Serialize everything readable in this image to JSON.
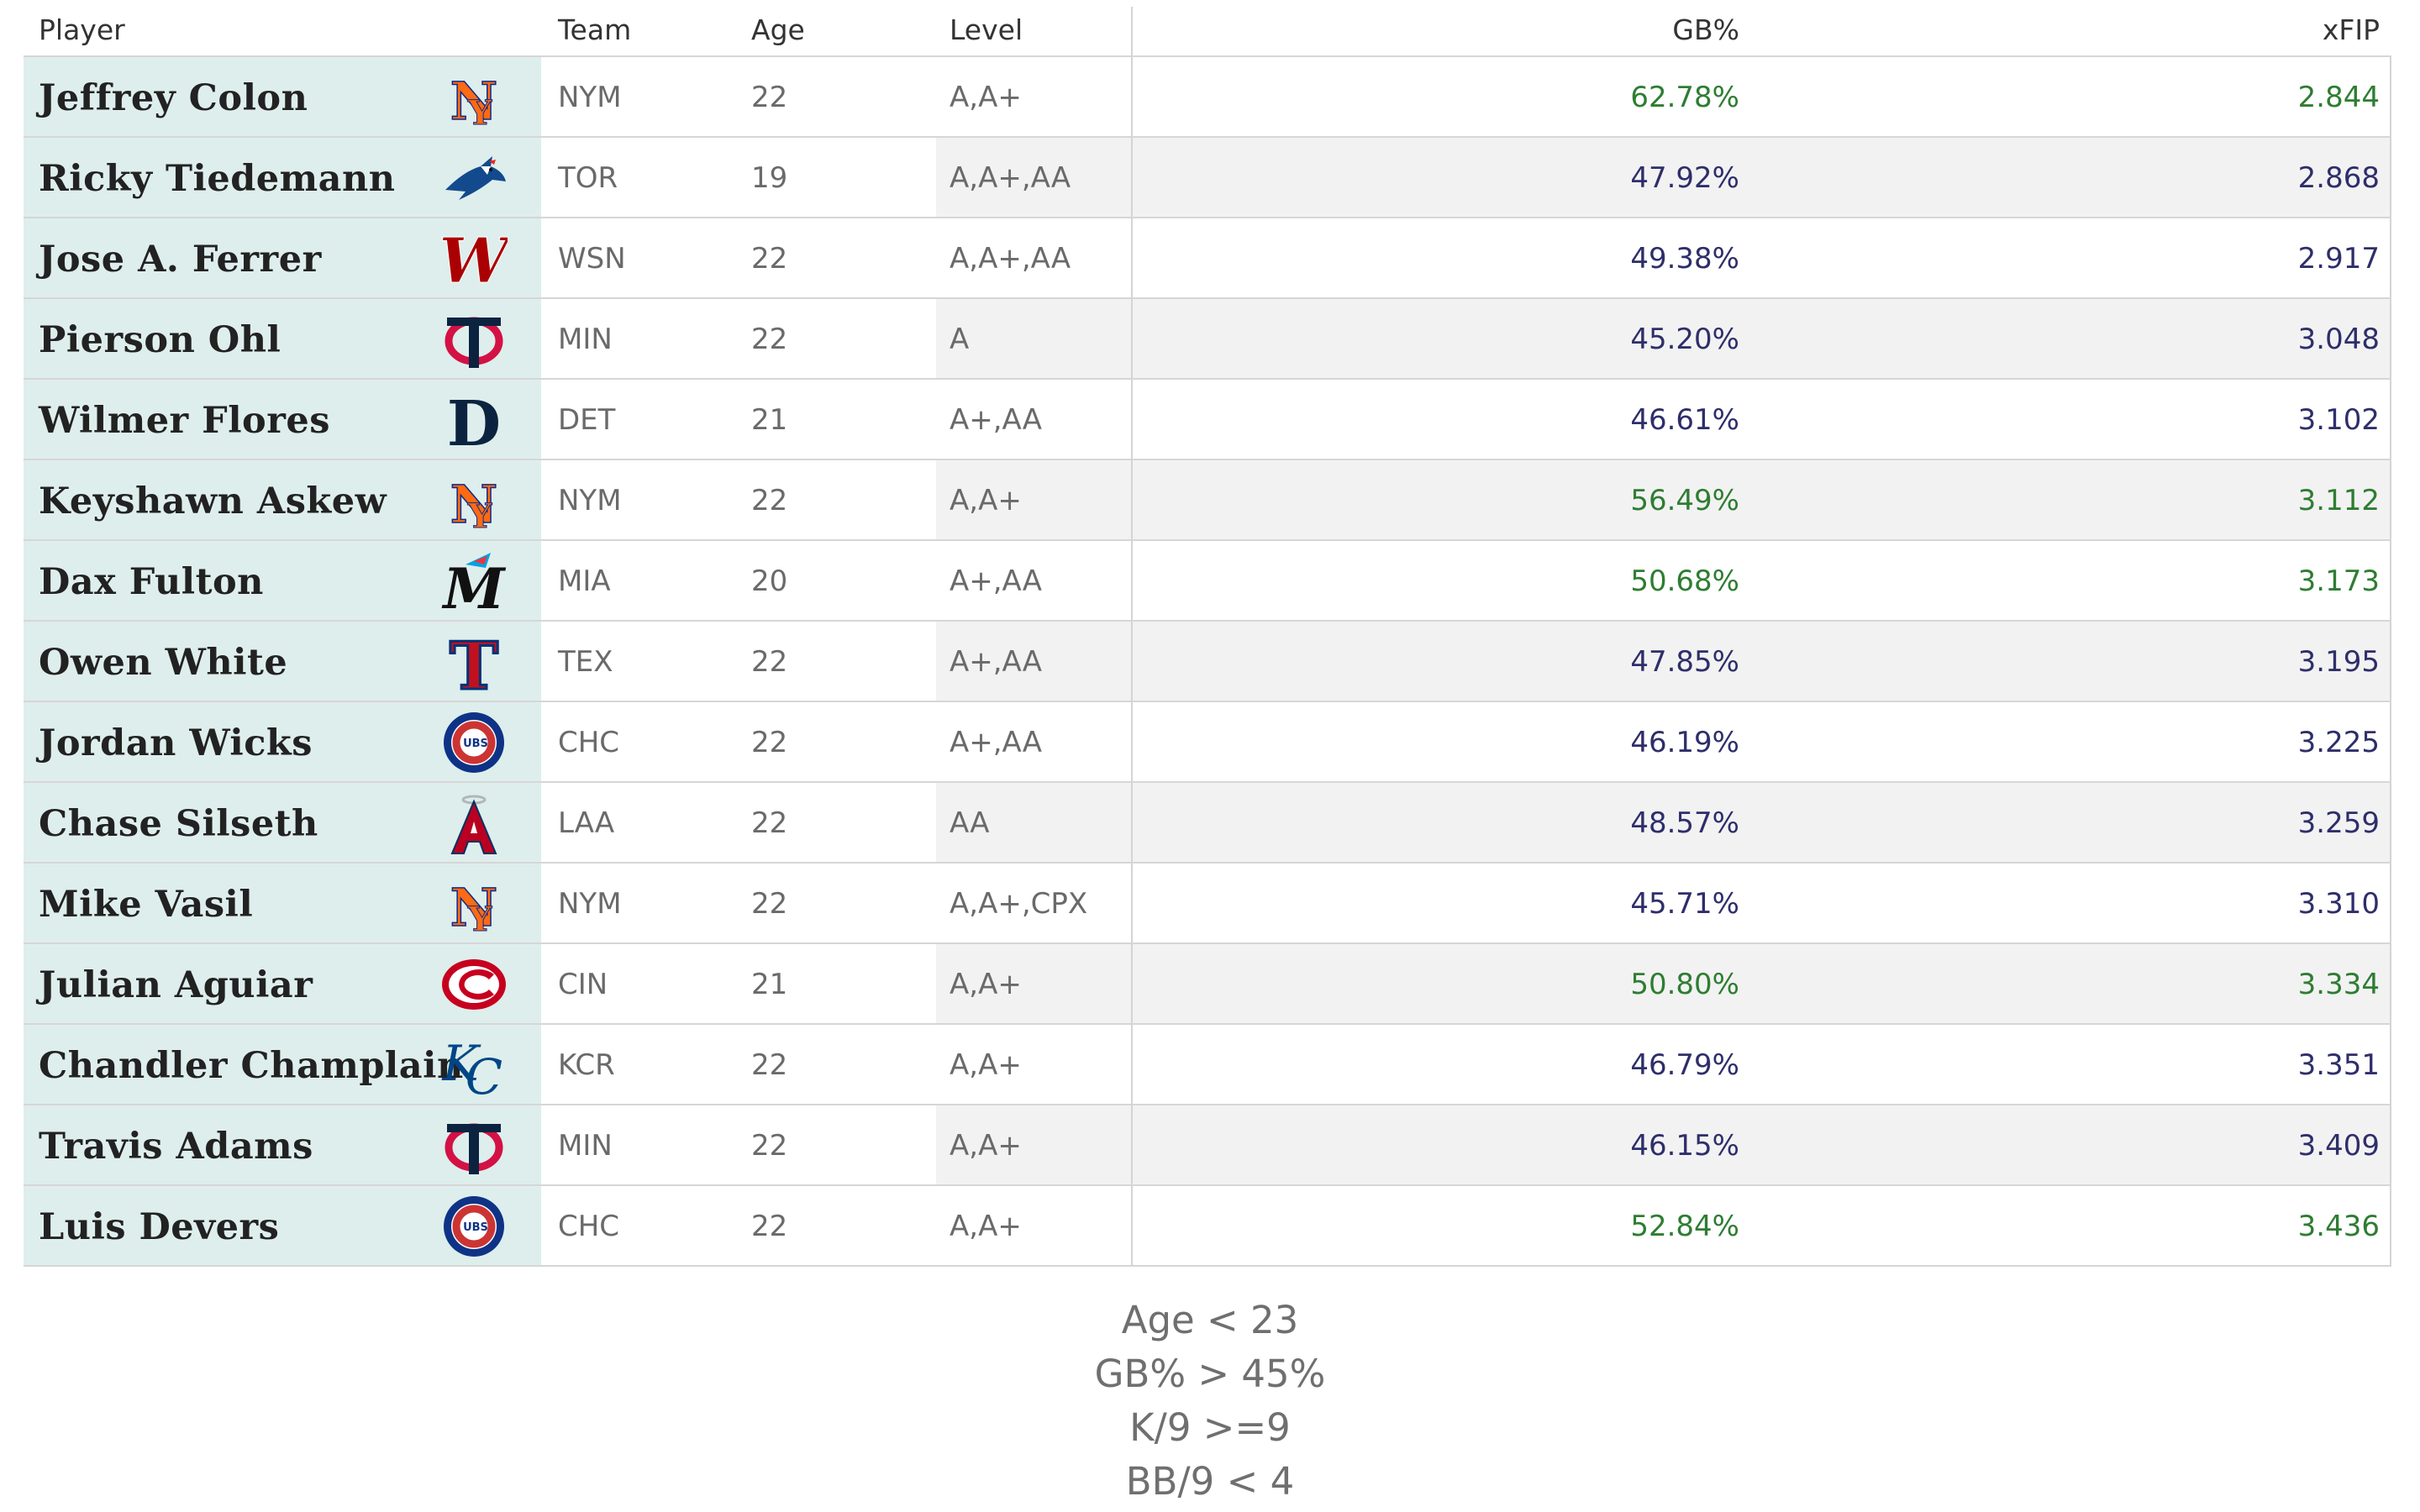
{
  "headers": {
    "player": "Player",
    "team": "Team",
    "age": "Age",
    "level": "Level",
    "gb": "GB%",
    "xfip": "xFIP"
  },
  "colors": {
    "good": "#2e7d32",
    "neutral": "#2e2e6b",
    "player_bg": "#deeeec",
    "alt_bg": "#f2f2f2"
  },
  "rows": [
    {
      "player": "Jeffrey Colon",
      "logo": "mets-logo-icon",
      "team": "NYM",
      "age": "22",
      "level": "A,A+",
      "gb": "62.78%",
      "xfip": "2.844",
      "tone": "good"
    },
    {
      "player": "Ricky Tiedemann",
      "logo": "blue-jays-logo-icon",
      "team": "TOR",
      "age": "19",
      "level": "A,A+,AA",
      "gb": "47.92%",
      "xfip": "2.868",
      "tone": "neutral"
    },
    {
      "player": "Jose A. Ferrer",
      "logo": "nationals-logo-icon",
      "team": "WSN",
      "age": "22",
      "level": "A,A+,AA",
      "gb": "49.38%",
      "xfip": "2.917",
      "tone": "neutral"
    },
    {
      "player": "Pierson Ohl",
      "logo": "twins-logo-icon",
      "team": "MIN",
      "age": "22",
      "level": "A",
      "gb": "45.20%",
      "xfip": "3.048",
      "tone": "neutral"
    },
    {
      "player": "Wilmer Flores",
      "logo": "tigers-logo-icon",
      "team": "DET",
      "age": "21",
      "level": "A+,AA",
      "gb": "46.61%",
      "xfip": "3.102",
      "tone": "neutral"
    },
    {
      "player": "Keyshawn Askew",
      "logo": "mets-logo-icon",
      "team": "NYM",
      "age": "22",
      "level": "A,A+",
      "gb": "56.49%",
      "xfip": "3.112",
      "tone": "good"
    },
    {
      "player": "Dax Fulton",
      "logo": "marlins-logo-icon",
      "team": "MIA",
      "age": "20",
      "level": "A+,AA",
      "gb": "50.68%",
      "xfip": "3.173",
      "tone": "good"
    },
    {
      "player": "Owen White",
      "logo": "rangers-logo-icon",
      "team": "TEX",
      "age": "22",
      "level": "A+,AA",
      "gb": "47.85%",
      "xfip": "3.195",
      "tone": "neutral"
    },
    {
      "player": "Jordan Wicks",
      "logo": "cubs-logo-icon",
      "team": "CHC",
      "age": "22",
      "level": "A+,AA",
      "gb": "46.19%",
      "xfip": "3.225",
      "tone": "neutral"
    },
    {
      "player": "Chase Silseth",
      "logo": "angels-logo-icon",
      "team": "LAA",
      "age": "22",
      "level": "AA",
      "gb": "48.57%",
      "xfip": "3.259",
      "tone": "neutral"
    },
    {
      "player": "Mike Vasil",
      "logo": "mets-logo-icon",
      "team": "NYM",
      "age": "22",
      "level": "A,A+,CPX",
      "gb": "45.71%",
      "xfip": "3.310",
      "tone": "neutral"
    },
    {
      "player": "Julian Aguiar",
      "logo": "reds-logo-icon",
      "team": "CIN",
      "age": "21",
      "level": "A,A+",
      "gb": "50.80%",
      "xfip": "3.334",
      "tone": "good"
    },
    {
      "player": "Chandler Champlain",
      "logo": "royals-logo-icon",
      "team": "KCR",
      "age": "22",
      "level": "A,A+",
      "gb": "46.79%",
      "xfip": "3.351",
      "tone": "neutral"
    },
    {
      "player": "Travis Adams",
      "logo": "twins-logo-icon",
      "team": "MIN",
      "age": "22",
      "level": "A,A+",
      "gb": "46.15%",
      "xfip": "3.409",
      "tone": "neutral"
    },
    {
      "player": "Luis Devers",
      "logo": "cubs-logo-icon",
      "team": "CHC",
      "age": "22",
      "level": "A,A+",
      "gb": "52.84%",
      "xfip": "3.436",
      "tone": "good"
    }
  ],
  "filters": [
    "Age < 23",
    "GB% > 45%",
    "K/9 >=9",
    "BB/9 < 4"
  ]
}
